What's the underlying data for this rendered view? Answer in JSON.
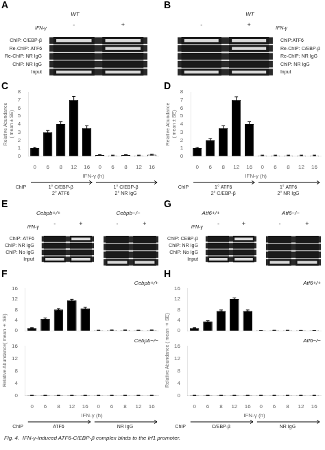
{
  "chart_data": [
    {
      "type": "heatmap",
      "title": "A",
      "subtitle": "WT",
      "xlabel": "IFN-γ",
      "x": [
        "-",
        "+"
      ],
      "y": [
        "ChIP: C/EBP-β",
        "Re-ChIP: ATF6",
        "Re-ChIP: NR IgG",
        "ChIP: NR IgG",
        "Input"
      ],
      "values": [
        [
          true,
          true
        ],
        [
          false,
          true
        ],
        [
          false,
          false
        ],
        [
          false,
          false
        ],
        [
          true,
          true
        ]
      ]
    },
    {
      "type": "heatmap",
      "title": "B",
      "subtitle": "WT",
      "xlabel": "IFN-γ",
      "x": [
        "-",
        "+"
      ],
      "y": [
        "ChIP:ATF6",
        "Re-ChIP: C/EBP-β",
        "Re-ChIP: NR IgG",
        "ChIP: NR IgG",
        "Input"
      ],
      "values": [
        [
          true,
          true
        ],
        [
          false,
          true
        ],
        [
          false,
          false
        ],
        [
          false,
          false
        ],
        [
          true,
          true
        ]
      ]
    },
    {
      "type": "bar",
      "title": "C",
      "ylabel": "Relative Abundance\n( mean ± SE)",
      "xlabel": "IFN-γ (h)",
      "annotations": [
        "ChIP"
      ],
      "categories": [
        "0",
        "6",
        "8",
        "12",
        "16",
        "0",
        "6",
        "8",
        "12",
        "16"
      ],
      "series": [
        {
          "name": "1° C/EBP-β\n2° ATF6",
          "color": "#000000",
          "values": [
            1.0,
            3.0,
            4.0,
            7.0,
            3.5,
            null,
            null,
            null,
            null,
            null
          ],
          "errors": [
            0.1,
            0.2,
            0.3,
            0.45,
            0.3,
            null,
            null,
            null,
            null,
            null
          ]
        },
        {
          "name": "1° C/EBP-β\n2° NR IgG",
          "color": "#ffffff",
          "values": [
            null,
            null,
            null,
            null,
            null,
            0.15,
            0.1,
            0.15,
            0.1,
            0.2
          ],
          "errors": [
            null,
            null,
            null,
            null,
            null,
            0.05,
            0.04,
            0.05,
            0.04,
            0.05
          ]
        }
      ],
      "ylim": [
        0,
        8
      ],
      "yticks": [
        0,
        1,
        2,
        3,
        4,
        5,
        6,
        7,
        8
      ],
      "grid": false
    },
    {
      "type": "bar",
      "title": "D",
      "ylabel": "Relative Abundance\n( mean ± SE)",
      "xlabel": "IFN-γ (h)",
      "annotations": [
        "ChIP"
      ],
      "categories": [
        "0",
        "6",
        "8",
        "12",
        "16",
        "0",
        "6",
        "8",
        "12",
        "16"
      ],
      "series": [
        {
          "name": "1° ATF6\n2° C/EBP-β",
          "color": "#000000",
          "values": [
            1.0,
            2.0,
            3.5,
            7.0,
            4.0,
            null,
            null,
            null,
            null,
            null
          ],
          "errors": [
            0.1,
            0.2,
            0.3,
            0.4,
            0.3,
            null,
            null,
            null,
            null,
            null
          ]
        },
        {
          "name": "1° ATF6\n2° NR IgG",
          "color": "#ffffff",
          "values": [
            null,
            null,
            null,
            null,
            null,
            0.1,
            0.1,
            0.1,
            0.1,
            0.1
          ],
          "errors": [
            null,
            null,
            null,
            null,
            null,
            0.04,
            0.04,
            0.04,
            0.04,
            0.04
          ]
        }
      ],
      "ylim": [
        0,
        8
      ],
      "yticks": [
        0,
        1,
        2,
        3,
        4,
        5,
        6,
        7,
        8
      ],
      "grid": false
    },
    {
      "type": "heatmap",
      "title": "E",
      "subtitle": "Cebpb+/+",
      "xlabel": "IFN-γ",
      "x": [
        "-",
        "+"
      ],
      "y": [
        "ChIP: ATF6",
        "ChIP: NR IgG",
        "ChIP: No IgG",
        "Input"
      ],
      "values": [
        [
          false,
          true
        ],
        [
          false,
          false
        ],
        [
          false,
          false
        ],
        [
          true,
          true
        ]
      ]
    },
    {
      "type": "heatmap",
      "subtitle": "Cebpb−/−",
      "x": [
        "-",
        "+"
      ],
      "y": [
        "ChIP: ATF6",
        "ChIP: NR IgG",
        "ChIP: No IgG",
        "Input"
      ],
      "values": [
        [
          false,
          false
        ],
        [
          false,
          false
        ],
        [
          false,
          false
        ],
        [
          true,
          true
        ]
      ],
      "tick_labels": "x"
    },
    {
      "type": "heatmap",
      "title": "G",
      "subtitle": "Atf6+/+",
      "xlabel": "IFN-γ",
      "x": [
        "-",
        "+"
      ],
      "y": [
        "ChIP: CEBP-β",
        "ChIP: NR IgG",
        "ChIP: No IgG",
        "Input"
      ],
      "values": [
        [
          false,
          true
        ],
        [
          false,
          false
        ],
        [
          false,
          false
        ],
        [
          true,
          true
        ]
      ]
    },
    {
      "type": "heatmap",
      "subtitle": "Atf6−/−",
      "x": [
        "-",
        "+"
      ],
      "y": [
        "ChIP: CEBP-β",
        "ChIP: NR IgG",
        "ChIP: No IgG",
        "Input"
      ],
      "values": [
        [
          false,
          false
        ],
        [
          false,
          false
        ],
        [
          false,
          false
        ],
        [
          true,
          true
        ]
      ],
      "tick_labels": "x"
    },
    {
      "type": "bar",
      "title": "F",
      "subtitle": "Cebpb+/+",
      "ylabel": "Relative Abundance( mean ± SE)",
      "categories": [
        "0",
        "6",
        "8",
        "12",
        "16",
        "0",
        "6",
        "8",
        "12",
        "16"
      ],
      "series": [
        {
          "color": "#000000",
          "values": [
            1.0,
            4.5,
            8.0,
            11.5,
            8.5,
            null,
            null,
            null,
            null,
            null
          ],
          "errors": [
            0.1,
            0.3,
            0.35,
            0.4,
            0.35,
            null,
            null,
            null,
            null,
            null
          ]
        },
        {
          "color": "#ffffff",
          "values": [
            null,
            null,
            null,
            null,
            null,
            0.15,
            0.2,
            0.2,
            0.15,
            0.2
          ],
          "errors": [
            null,
            null,
            null,
            null,
            null,
            0.05,
            0.05,
            0.05,
            0.05,
            0.05
          ]
        }
      ],
      "ylim": [
        0,
        16
      ],
      "yticks": [
        0,
        4,
        8,
        12,
        16
      ],
      "grid": false,
      "tick_labels": "y"
    },
    {
      "type": "bar",
      "subtitle": "Cebpb−/−",
      "xlabel": "IFN-γ (h)",
      "annotations": [
        "ChIP"
      ],
      "categories": [
        "0",
        "6",
        "8",
        "12",
        "16",
        "0",
        "6",
        "8",
        "12",
        "16"
      ],
      "series": [
        {
          "name": "ATF6",
          "color": "#000000",
          "values": [
            0.1,
            0.1,
            0.1,
            0.1,
            0.1,
            null,
            null,
            null,
            null,
            null
          ],
          "errors": [
            0.04,
            0.04,
            0.04,
            0.04,
            0.04,
            null,
            null,
            null,
            null,
            null
          ]
        },
        {
          "name": "NR IgG",
          "color": "#ffffff",
          "values": [
            null,
            null,
            null,
            null,
            null,
            0.1,
            0.1,
            0.1,
            0.1,
            0.1
          ],
          "errors": [
            null,
            null,
            null,
            null,
            null,
            0.04,
            0.04,
            0.04,
            0.04,
            0.04
          ]
        }
      ],
      "ylim": [
        0,
        16
      ],
      "yticks": [
        0,
        4,
        8,
        12,
        16
      ],
      "grid": false
    },
    {
      "type": "bar",
      "title": "H",
      "subtitle": "Atf6+/+",
      "ylabel": "Relative Abundance ( mean ± SE)",
      "categories": [
        "0",
        "6",
        "8",
        "12",
        "16",
        "0",
        "6",
        "8",
        "12",
        "16"
      ],
      "series": [
        {
          "color": "#000000",
          "values": [
            1.0,
            3.5,
            7.5,
            12.0,
            7.5,
            null,
            null,
            null,
            null,
            null
          ],
          "errors": [
            0.1,
            0.25,
            0.35,
            0.45,
            0.35,
            null,
            null,
            null,
            null,
            null
          ]
        },
        {
          "color": "#ffffff",
          "values": [
            null,
            null,
            null,
            null,
            null,
            0.1,
            0.15,
            0.15,
            0.12,
            0.1
          ],
          "errors": [
            null,
            null,
            null,
            null,
            null,
            0.04,
            0.04,
            0.04,
            0.04,
            0.04
          ]
        }
      ],
      "ylim": [
        0,
        16
      ],
      "yticks": [
        0,
        4,
        8,
        12,
        16
      ],
      "grid": false,
      "tick_labels": "y"
    },
    {
      "type": "bar",
      "subtitle": "Atf6−/−",
      "xlabel": "IFN-γ (h)",
      "annotations": [
        "ChIP"
      ],
      "categories": [
        "0",
        "6",
        "8",
        "12",
        "16",
        "0",
        "6",
        "8",
        "12",
        "16"
      ],
      "series": [
        {
          "name": "C/EBP-β",
          "color": "#000000",
          "values": [
            0.1,
            0.1,
            0.1,
            0.1,
            0.1,
            null,
            null,
            null,
            null,
            null
          ],
          "errors": [
            0.04,
            0.04,
            0.04,
            0.04,
            0.04,
            null,
            null,
            null,
            null,
            null
          ]
        },
        {
          "name": "NR IgG",
          "color": "#ffffff",
          "values": [
            null,
            null,
            null,
            null,
            null,
            0.1,
            0.1,
            0.1,
            0.1,
            0.1
          ],
          "errors": [
            null,
            null,
            null,
            null,
            null,
            0.04,
            0.04,
            0.04,
            0.04,
            0.04
          ]
        }
      ],
      "ylim": [
        0,
        16
      ],
      "yticks": [
        0,
        4,
        8,
        12,
        16
      ],
      "grid": false
    }
  ],
  "annotations": [
    "Fig. 4.  IFN-γ-induced ATF6-C/EBP-β complex binds to the Irf1 promoter."
  ]
}
